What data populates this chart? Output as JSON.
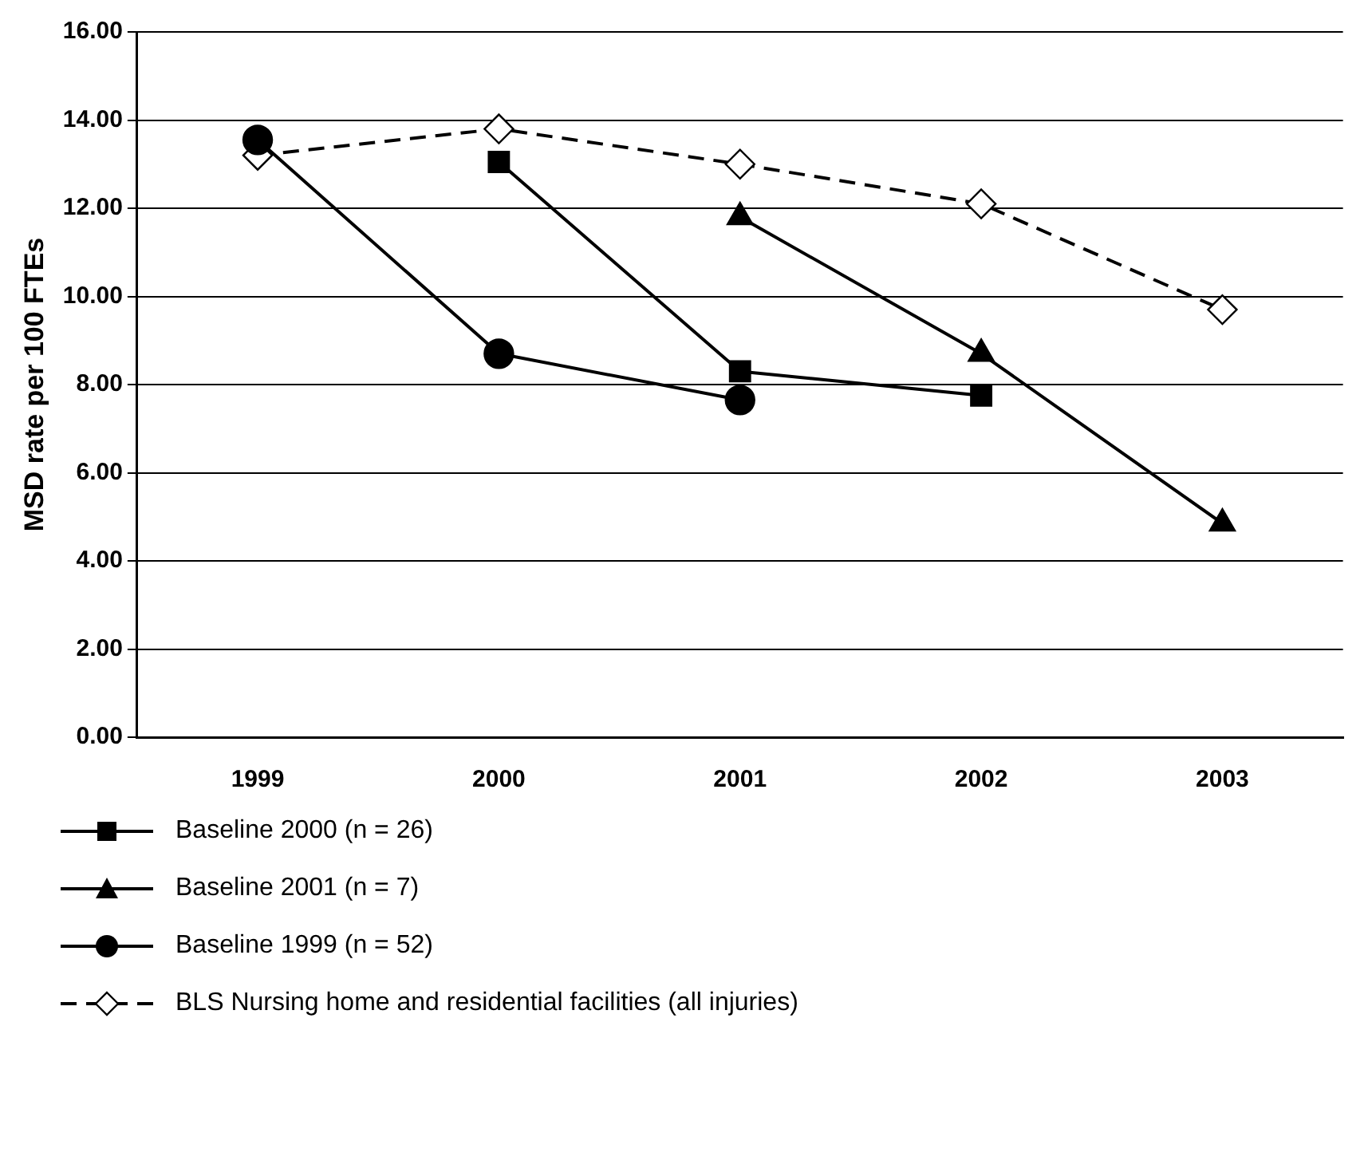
{
  "chart_data": {
    "type": "line",
    "ylabel": "MSD rate per 100 FTEs",
    "categories": [
      "1999",
      "2000",
      "2001",
      "2002",
      "2003"
    ],
    "ylim": [
      0,
      16
    ],
    "yticks": [
      {
        "value": 0,
        "label": "0.00"
      },
      {
        "value": 2,
        "label": "2.00"
      },
      {
        "value": 4,
        "label": "4.00"
      },
      {
        "value": 6,
        "label": "6.00"
      },
      {
        "value": 8,
        "label": "8.00"
      },
      {
        "value": 10,
        "label": "10.00"
      },
      {
        "value": 12,
        "label": "12.00"
      },
      {
        "value": 14,
        "label": "14.00"
      },
      {
        "value": 16,
        "label": "16.00"
      }
    ],
    "grid": "y",
    "legend": "bottom",
    "line_style": "solid",
    "series": [
      {
        "name": "Baseline 2000 (n = 26)",
        "color": "#000000",
        "marker": "square",
        "values": [
          null,
          13.05,
          8.3,
          7.75,
          null
        ]
      },
      {
        "name": "Baseline 2001 (n = 7)",
        "color": "#000000",
        "marker": "triangle",
        "values": [
          null,
          null,
          11.8,
          8.7,
          4.85
        ]
      },
      {
        "name": "Baseline 1999 (n = 52)",
        "color": "#000000",
        "marker": "circle",
        "values": [
          13.55,
          8.7,
          7.65,
          null,
          null
        ]
      },
      {
        "name": "BLS Nursing home and residential facilities (all injuries)",
        "color": "#000000",
        "marker": "diamond",
        "line_style": "dashed",
        "values": [
          13.2,
          13.8,
          13.0,
          12.1,
          9.7
        ]
      }
    ]
  }
}
